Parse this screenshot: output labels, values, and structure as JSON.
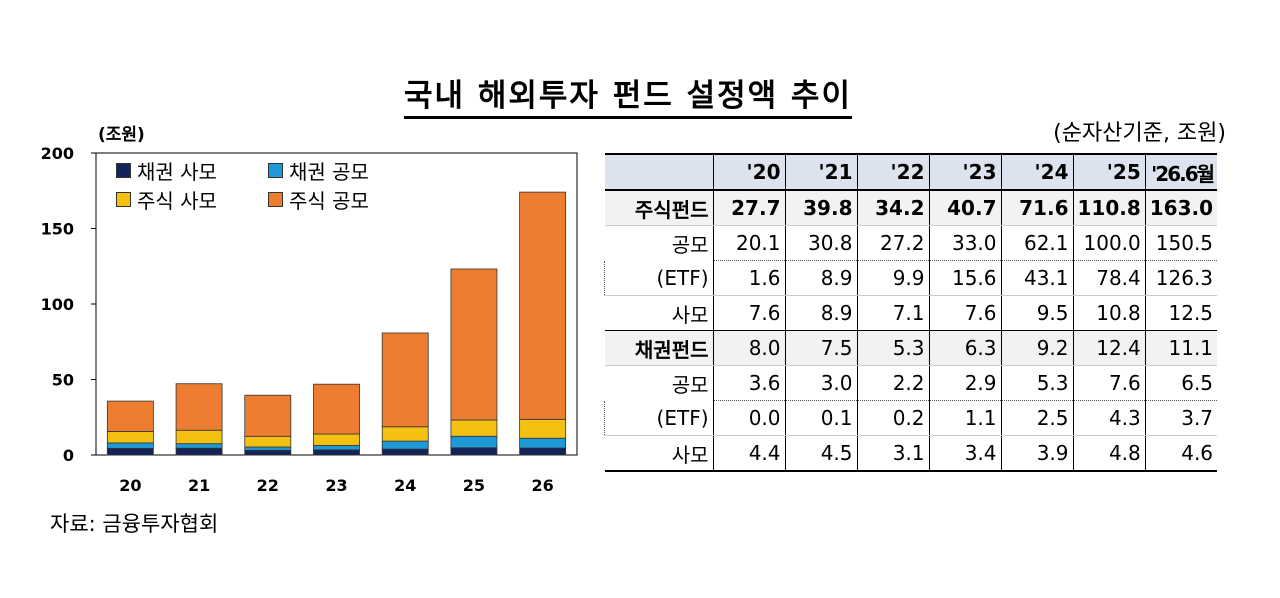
{
  "title": "국내 해외투자 펀드 설정액 추이",
  "unit_chart": "(조원)",
  "unit_table": "(순자산기준, 조원)",
  "source": "자료: 금융투자협회",
  "colors": {
    "bond_private": "#13245a",
    "bond_public": "#1f9ad6",
    "stock_private": "#f4c012",
    "stock_public": "#ed7d31",
    "header_bg": "#dde3ee"
  },
  "chart_data": {
    "type": "bar",
    "stacked": true,
    "categories": [
      "20",
      "21",
      "22",
      "23",
      "24",
      "25",
      "26"
    ],
    "series": [
      {
        "name": "채권 사모",
        "values": [
          4.4,
          4.5,
          3.1,
          3.4,
          3.9,
          4.8,
          4.6
        ]
      },
      {
        "name": "채권 공모",
        "values": [
          3.6,
          3.0,
          2.2,
          2.9,
          5.3,
          7.6,
          6.5
        ]
      },
      {
        "name": "주식 사모",
        "values": [
          7.6,
          8.9,
          7.1,
          7.6,
          9.5,
          10.8,
          12.5
        ]
      },
      {
        "name": "주식 공모",
        "values": [
          20.1,
          30.8,
          27.2,
          33.0,
          62.1,
          100.0,
          150.5
        ]
      }
    ],
    "ylim": [
      0,
      200
    ],
    "yticks": [
      "0",
      "50",
      "100",
      "150",
      "200"
    ],
    "legend_position": "top-left"
  },
  "table": {
    "headers": [
      "",
      "'20",
      "'21",
      "'22",
      "'23",
      "'24",
      "'25",
      "'26.6월"
    ],
    "rows": [
      {
        "label": "주식펀드",
        "values": [
          "27.7",
          "39.8",
          "34.2",
          "40.7",
          "71.6",
          "110.8",
          "163.0"
        ]
      },
      {
        "label": "공모",
        "values": [
          "20.1",
          "30.8",
          "27.2",
          "33.0",
          "62.1",
          "100.0",
          "150.5"
        ]
      },
      {
        "label": "(ETF)",
        "values": [
          "1.6",
          "8.9",
          "9.9",
          "15.6",
          "43.1",
          "78.4",
          "126.3"
        ]
      },
      {
        "label": "사모",
        "values": [
          "7.6",
          "8.9",
          "7.1",
          "7.6",
          "9.5",
          "10.8",
          "12.5"
        ]
      },
      {
        "label": "채권펀드",
        "values": [
          "8.0",
          "7.5",
          "5.3",
          "6.3",
          "9.2",
          "12.4",
          "11.1"
        ]
      },
      {
        "label": "공모",
        "values": [
          "3.6",
          "3.0",
          "2.2",
          "2.9",
          "5.3",
          "7.6",
          "6.5"
        ]
      },
      {
        "label": "(ETF)",
        "values": [
          "0.0",
          "0.1",
          "0.2",
          "1.1",
          "2.5",
          "4.3",
          "3.7"
        ]
      },
      {
        "label": "사모",
        "values": [
          "4.4",
          "4.5",
          "3.1",
          "3.4",
          "3.9",
          "4.8",
          "4.6"
        ]
      }
    ]
  }
}
